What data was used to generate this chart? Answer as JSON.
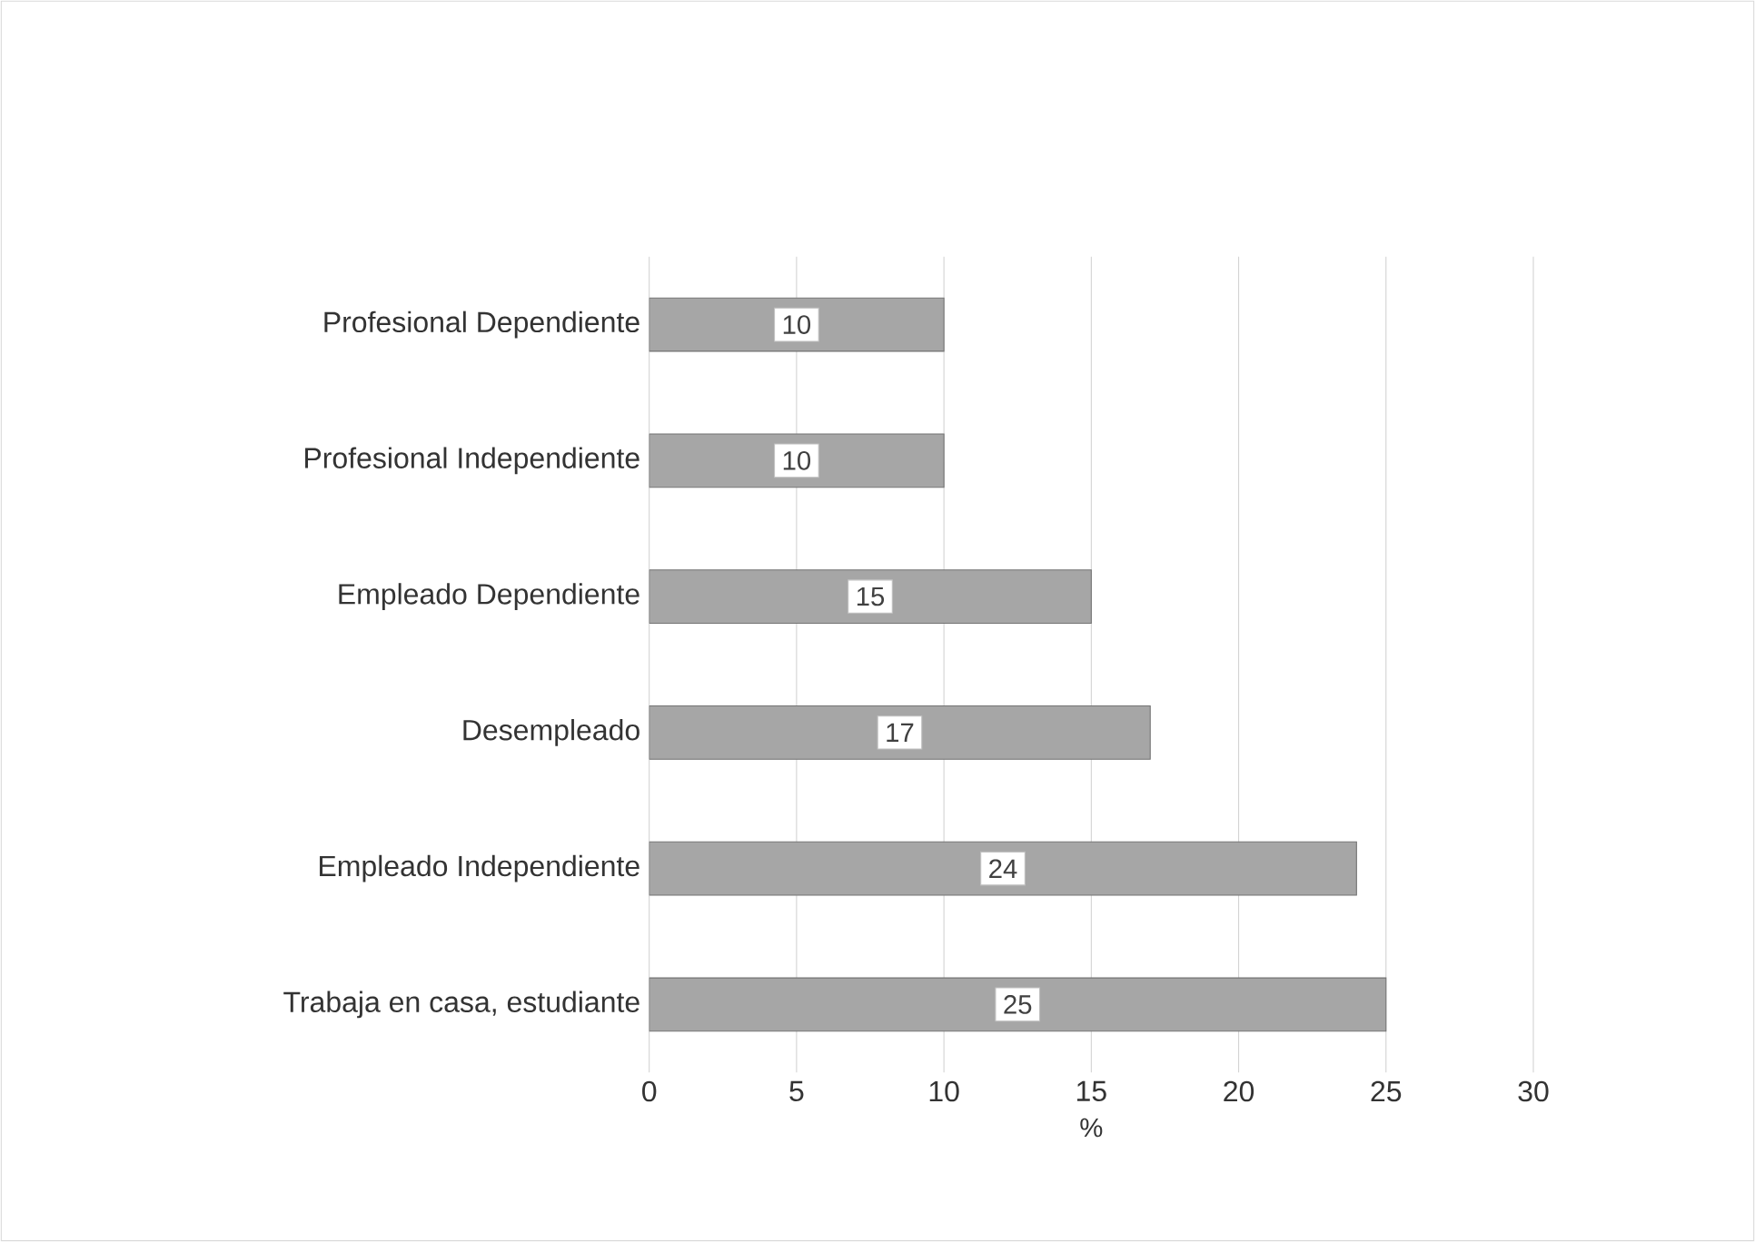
{
  "chart_data": {
    "type": "bar",
    "orientation": "horizontal",
    "xlabel": "%",
    "categories": [
      "Profesional Dependiente",
      "Profesional Independiente",
      "Empleado Dependiente",
      "Desempleado",
      "Empleado Independiente",
      "Trabaja en casa, estudiante"
    ],
    "values": [
      10,
      10,
      15,
      17,
      24,
      25
    ],
    "color": "#a6a6a6",
    "xlim": [
      0,
      30
    ],
    "xticks": [
      0,
      5,
      10,
      15,
      20,
      25,
      30
    ],
    "grid": "x",
    "data_labels": true
  }
}
